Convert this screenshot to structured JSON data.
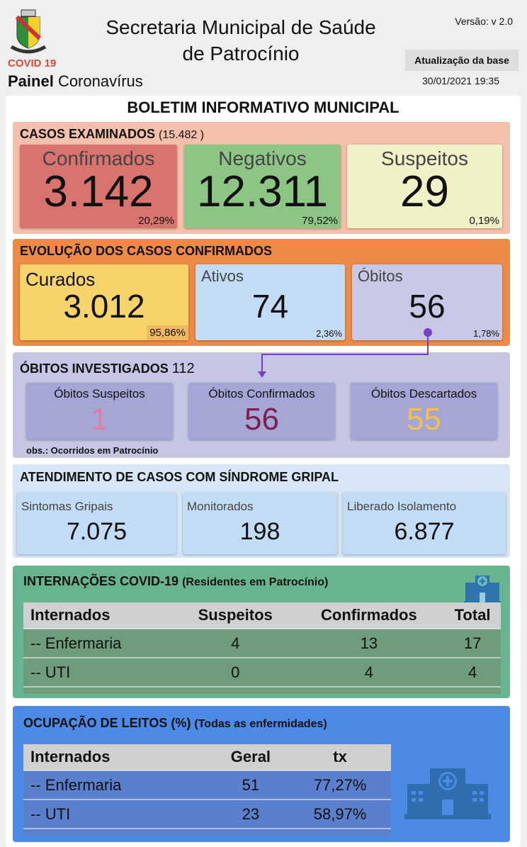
{
  "header": {
    "title_line1": "Secretaria Municipal de Saúde",
    "title_line2": "de Patrocínio",
    "version": "Versão: v 2.0",
    "update_label": "Atualização da base",
    "update_date": "30/01/2021 19:35",
    "covid": "COVID 19",
    "painel_bold": "Painel",
    "painel_rest": "Coronavírus",
    "logo_text": "PATROCÍNIO"
  },
  "bulletin_title": "BOLETIM INFORMATIVO MUNICIPAL",
  "examinados": {
    "heading": "CASOS EXAMINADOS",
    "total": "(15.482  )",
    "cards": [
      {
        "label": "Confirmados",
        "value": "3.142",
        "pct": "20,29%",
        "color": "#d9736e"
      },
      {
        "label": "Negativos",
        "value": "12.311",
        "pct": "79,52%",
        "color": "#8dc584"
      },
      {
        "label": "Suspeitos",
        "value": "29",
        "pct": "0,19%",
        "color": "#f0f1c6"
      }
    ]
  },
  "evolucao": {
    "heading": "EVOLUÇÃO DOS CASOS CONFIRMADOS",
    "cards": [
      {
        "label": "Curados",
        "value": "3.012",
        "pct": "95,86%"
      },
      {
        "label": "Ativos",
        "value": "74",
        "pct": "2,36%"
      },
      {
        "label": "Óbitos",
        "value": "56",
        "pct": "1,78%"
      }
    ]
  },
  "obitos": {
    "heading": "ÓBITOS INVESTIGADOS",
    "total": "112",
    "obs": "obs.: Ocorridos em Patrocínio",
    "cards": [
      {
        "label": "Óbitos Suspeitos",
        "value": "1",
        "color": "#e77aa3"
      },
      {
        "label": "Óbitos Confirmados",
        "value": "56",
        "color": "#7a1f4e"
      },
      {
        "label": "Óbitos Descartados",
        "value": "55",
        "color": "#f3c04c"
      }
    ]
  },
  "gripal": {
    "heading": "ATENDIMENTO DE CASOS COM SÍNDROME GRIPAL",
    "cards": [
      {
        "label": "Sintomas Gripais",
        "value": "7.075"
      },
      {
        "label": "Monitorados",
        "value": "198"
      },
      {
        "label": "Liberado Isolamento",
        "value": "6.877"
      }
    ]
  },
  "internacoes": {
    "heading": "INTERNAÇÕES COVID-19",
    "sub": "(Residentes em Patrocínio)",
    "icon": "hospital-icon",
    "columns": [
      "Internados",
      "Suspeitos",
      "Confirmados",
      "Total"
    ],
    "rows": [
      [
        "-- Enfermaria",
        "4",
        "13",
        "17"
      ],
      [
        "-- UTI",
        "0",
        "4",
        "4"
      ]
    ]
  },
  "ocupacao": {
    "heading": "OCUPAÇÃO DE LEITOS (%)",
    "sub": "(Todas as enfermidades)",
    "icon": "hospital-icon",
    "columns": [
      "Internados",
      "Geral",
      "tx"
    ],
    "rows": [
      [
        "-- Enfermaria",
        "51",
        "77,27%"
      ],
      [
        "-- UTI",
        "23",
        "58,97%"
      ]
    ]
  }
}
